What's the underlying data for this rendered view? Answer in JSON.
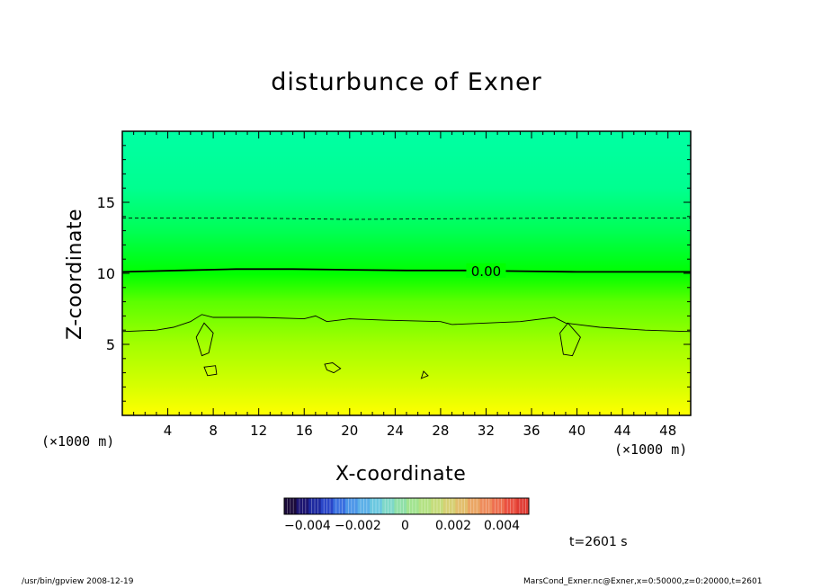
{
  "chart_data": {
    "type": "heatmap",
    "title": "disturbunce of Exner",
    "xlabel": "X-coordinate",
    "ylabel": "Z-coordinate",
    "x_unit_label": "(×1000 m)",
    "x_ticks": [
      "4",
      "8",
      "12",
      "16",
      "20",
      "24",
      "28",
      "32",
      "36",
      "40",
      "44",
      "48"
    ],
    "y_ticks": [
      "5",
      "10",
      "15"
    ],
    "xlim": [
      0,
      50
    ],
    "ylim": [
      0,
      20
    ],
    "field_gradient": [
      {
        "z": 0,
        "color": "#ffff00"
      },
      {
        "z": 2,
        "color": "#d8ff00"
      },
      {
        "z": 5,
        "color": "#a3ff00"
      },
      {
        "z": 8,
        "color": "#5cff00"
      },
      {
        "z": 10,
        "color": "#00ff00"
      },
      {
        "z": 13,
        "color": "#00ff55"
      },
      {
        "z": 16,
        "color": "#00ff90"
      },
      {
        "z": 20,
        "color": "#00ffa4"
      }
    ],
    "contours": [
      {
        "level": "0.00",
        "style": "solid-thick",
        "label": "0.00",
        "points": [
          [
            0,
            10.1
          ],
          [
            5,
            10.2
          ],
          [
            10,
            10.3
          ],
          [
            15,
            10.3
          ],
          [
            20,
            10.25
          ],
          [
            25,
            10.2
          ],
          [
            30,
            10.2
          ],
          [
            35,
            10.15
          ],
          [
            40,
            10.1
          ],
          [
            45,
            10.1
          ],
          [
            50,
            10.1
          ]
        ]
      },
      {
        "level": "negative",
        "style": "dashed",
        "points": [
          [
            0,
            13.9
          ],
          [
            10,
            13.9
          ],
          [
            20,
            13.8
          ],
          [
            30,
            13.85
          ],
          [
            40,
            13.9
          ],
          [
            50,
            13.9
          ]
        ]
      },
      {
        "level": "positive",
        "style": "solid-thin",
        "points": [
          [
            0,
            5.9
          ],
          [
            3,
            6.0
          ],
          [
            4.5,
            6.2
          ],
          [
            6,
            6.6
          ],
          [
            7,
            7.1
          ],
          [
            8,
            6.9
          ],
          [
            12,
            6.9
          ],
          [
            16,
            6.8
          ],
          [
            17,
            7.0
          ],
          [
            18,
            6.6
          ],
          [
            20,
            6.8
          ],
          [
            23,
            6.7
          ],
          [
            28,
            6.6
          ],
          [
            29,
            6.4
          ],
          [
            32,
            6.5
          ],
          [
            35,
            6.6
          ],
          [
            38,
            6.9
          ],
          [
            39,
            6.5
          ],
          [
            42,
            6.2
          ],
          [
            46,
            6.0
          ],
          [
            50,
            5.9
          ]
        ]
      }
    ],
    "colorbar": {
      "tick_labels": [
        "−0.004",
        "−0.002",
        "0",
        "0.002",
        "0.004"
      ],
      "colors": [
        "#1a0a3a",
        "#1c1470",
        "#1e2aa0",
        "#2a46c8",
        "#3a70e0",
        "#4c96e8",
        "#5cb0e8",
        "#6cc8e0",
        "#7ed8c8",
        "#90e0a8",
        "#a2e490",
        "#b4e284",
        "#c6dc7c",
        "#d6d074",
        "#e2be6c",
        "#eaa664",
        "#ee8c5c",
        "#ee7050",
        "#ea5040",
        "#e03c34"
      ]
    },
    "time_label": "t=2601 s"
  },
  "footer": {
    "left": "/usr/bin/gpview   2008-12-19",
    "right": "MarsCond_Exner.nc@Exner,x=0:50000,z=0:20000,t=2601"
  }
}
